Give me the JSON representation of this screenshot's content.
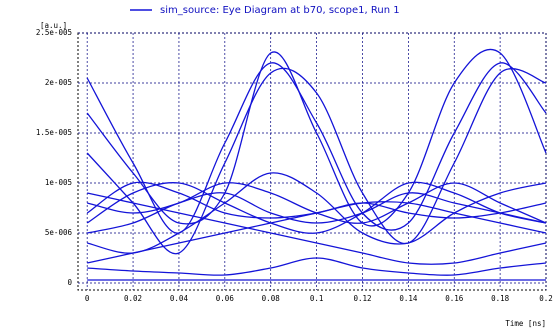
{
  "chart_data": {
    "type": "line",
    "legend": "sim_source: Eye Diagram at b70, scope1, Run 1",
    "y_label": "[a.u.]",
    "x_label": "Time [ns]",
    "color": "#1414d8",
    "grid": true,
    "xlim": [
      -0.004,
      0.2
    ],
    "ylim": [
      -7e-07,
      2.5e-05
    ],
    "xticks": [
      0,
      0.02,
      0.04,
      0.06,
      0.08,
      0.1,
      0.12,
      0.14,
      0.16,
      0.18,
      0.2
    ],
    "yticks": [
      {
        "value": 0,
        "label": "0"
      },
      {
        "value": 5e-06,
        "label": "5e-006"
      },
      {
        "value": 1e-05,
        "label": "1e-005"
      },
      {
        "value": 1.5e-05,
        "label": "1.5e-005"
      },
      {
        "value": 2e-05,
        "label": "2e-005"
      },
      {
        "value": 2.5e-05,
        "label": "2.5e-005"
      }
    ],
    "x": [
      0,
      0.02,
      0.04,
      0.06,
      0.08,
      0.1,
      0.12,
      0.14,
      0.16,
      0.18,
      0.2
    ],
    "series": [
      {
        "values": [
          2.05e-05,
          1.2e-05,
          5e-06,
          1.4e-05,
          2.2e-05,
          1.6e-05,
          7e-06,
          6e-06,
          1.5e-05,
          2.2e-05,
          1.7e-05
        ]
      },
      {
        "values": [
          1.3e-05,
          8e-06,
          3e-06,
          1.2e-05,
          2.1e-05,
          1.9e-05,
          9e-06,
          4e-06,
          1.2e-05,
          2.1e-05,
          2e-05
        ]
      },
      {
        "values": [
          1.7e-05,
          1.1e-05,
          6e-06,
          9e-06,
          2.3e-05,
          1.5e-05,
          6e-06,
          9e-06,
          2e-05,
          2.3e-05,
          1.3e-05
        ]
      },
      {
        "values": [
          8e-06,
          7e-06,
          8e-06,
          1e-05,
          9e-06,
          7e-06,
          6e-06,
          8e-06,
          1e-05,
          8e-06,
          6e-06
        ]
      },
      {
        "values": [
          5e-06,
          6e-06,
          8e-06,
          9e-06,
          7e-06,
          6e-06,
          7e-06,
          9e-06,
          8e-06,
          7e-06,
          6e-06
        ]
      },
      {
        "values": [
          2e-06,
          3e-06,
          4e-06,
          5e-06,
          6e-06,
          7e-06,
          8e-06,
          8e-06,
          7e-06,
          6e-06,
          5e-06
        ]
      },
      {
        "values": [
          9e-06,
          8e-06,
          7e-06,
          6e-06,
          5e-06,
          4e-06,
          3e-06,
          2e-06,
          2e-06,
          3e-06,
          4e-06
        ]
      },
      {
        "values": [
          3e-07,
          3e-07,
          3e-07,
          3e-07,
          3e-07,
          3e-07,
          3e-07,
          3e-07,
          3e-07,
          3e-07,
          3e-07
        ]
      },
      {
        "values": [
          1.5e-06,
          1.2e-06,
          1e-06,
          8e-07,
          1.5e-06,
          2.5e-06,
          1.5e-06,
          1e-06,
          8e-07,
          1.5e-06,
          2e-06
        ]
      },
      {
        "values": [
          6e-06,
          9e-06,
          1e-05,
          8e-06,
          6e-06,
          5e-06,
          7e-06,
          1e-05,
          9e-06,
          7e-06,
          6e-06
        ]
      },
      {
        "values": [
          7e-06,
          1e-05,
          9e-06,
          7e-06,
          6.5e-06,
          7e-06,
          8e-06,
          7e-06,
          6.5e-06,
          7e-06,
          8e-06
        ]
      },
      {
        "values": [
          4e-06,
          3e-06,
          5e-06,
          8e-06,
          1.1e-05,
          9e-06,
          5e-06,
          4e-06,
          7e-06,
          9e-06,
          1e-05
        ]
      }
    ]
  }
}
